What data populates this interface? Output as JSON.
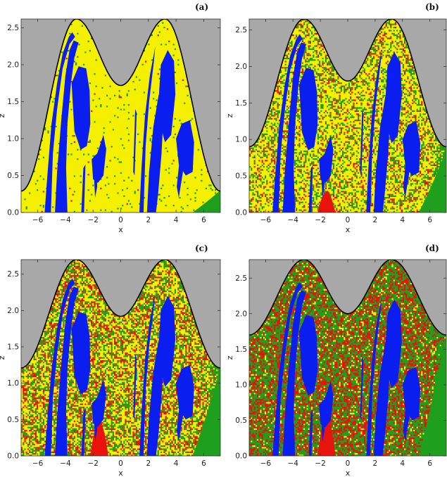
{
  "chart_data": [
    {
      "type": "heatmap",
      "panel_label": "(a)",
      "xlabel": "x",
      "ylabel": "z",
      "xlim": [
        -7.2,
        7.2
      ],
      "ylim": [
        0,
        2.62
      ],
      "xticks": [
        -6,
        -4,
        -2,
        0,
        2,
        4,
        6
      ],
      "yticks": [
        0.0,
        0.5,
        1.0,
        1.5,
        2.0,
        2.5
      ],
      "boundary_min_z": 1.72,
      "boundary_edge_z": 0.29,
      "boundary_peak_z": 2.62,
      "mix": {
        "yellow": 0.96,
        "red": 0.005,
        "green": 0.035
      }
    },
    {
      "type": "heatmap",
      "panel_label": "(b)",
      "xlabel": "x",
      "ylabel": "z",
      "xlim": [
        -7.2,
        7.2
      ],
      "ylim": [
        0,
        2.65
      ],
      "xticks": [
        -6,
        -4,
        -2,
        0,
        2,
        4,
        6
      ],
      "yticks": [
        0.0,
        0.5,
        1.0,
        1.5,
        2.0,
        2.5
      ],
      "boundary_min_z": 1.8,
      "boundary_edge_z": 0.9,
      "boundary_peak_z": 2.65,
      "mix": {
        "yellow": 0.62,
        "red": 0.14,
        "green": 0.24
      }
    },
    {
      "type": "heatmap",
      "panel_label": "(c)",
      "xlabel": "x",
      "ylabel": "z",
      "xlim": [
        -7.2,
        7.2
      ],
      "ylim": [
        0,
        2.7
      ],
      "xticks": [
        -6,
        -4,
        -2,
        0,
        2,
        4,
        6
      ],
      "yticks": [
        0.0,
        0.5,
        1.0,
        1.5,
        2.0,
        2.5
      ],
      "boundary_min_z": 1.92,
      "boundary_edge_z": 1.21,
      "boundary_peak_z": 2.7,
      "mix": {
        "yellow": 0.45,
        "red": 0.25,
        "green": 0.3
      }
    },
    {
      "type": "heatmap",
      "panel_label": "(d)",
      "xlabel": "x",
      "ylabel": "z",
      "xlim": [
        -7.2,
        7.2
      ],
      "ylim": [
        0,
        2.76
      ],
      "xticks": [
        -6,
        -4,
        -2,
        0,
        2,
        4,
        6
      ],
      "yticks": [
        0.0,
        0.5,
        1.0,
        1.5,
        2.0,
        2.5
      ],
      "boundary_min_z": 2.0,
      "boundary_edge_z": 1.7,
      "boundary_peak_z": 2.76,
      "mix": {
        "yellow": 0.1,
        "red": 0.38,
        "green": 0.52
      }
    }
  ],
  "colors": {
    "forbidden": "#a8a8a8",
    "bounded": "#0a1ef0",
    "escape_1": "#f4f000",
    "escape_2": "#e8130c",
    "escape_3": "#1ea01e",
    "boundary": "#000000"
  }
}
